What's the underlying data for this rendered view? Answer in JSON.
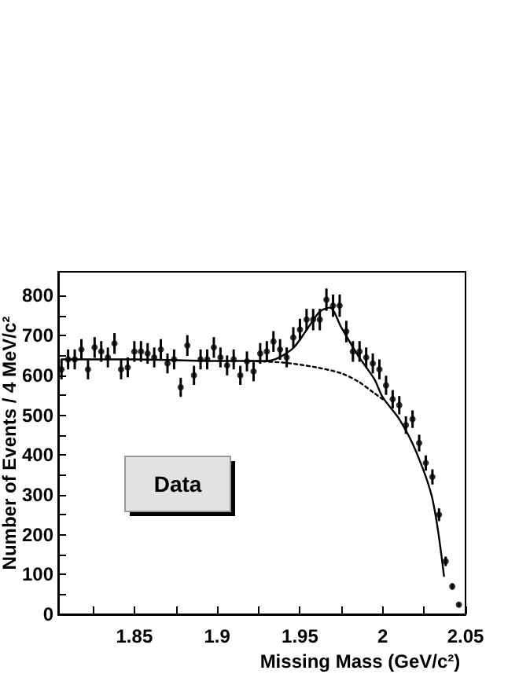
{
  "chart_data": {
    "type": "scatter",
    "xlabel": "Missing Mass (GeV/c²)",
    "ylabel": "Number of Events / 4 MeV/c²",
    "annotations": [
      "Data"
    ],
    "xlim": [
      1.804,
      2.05
    ],
    "ylim": [
      0,
      860
    ],
    "xticks": [
      {
        "value": 1.825,
        "label": null
      },
      1.85,
      {
        "value": 1.875,
        "label": null
      },
      1.9,
      {
        "value": 1.925,
        "label": null
      },
      1.95,
      {
        "value": 1.975,
        "label": null
      },
      2,
      {
        "value": 2.025,
        "label": null
      },
      2.05
    ],
    "yticks": [
      0,
      {
        "value": 50,
        "label": null
      },
      100,
      {
        "value": 150,
        "label": null
      },
      200,
      {
        "value": 250,
        "label": null
      },
      300,
      {
        "value": 350,
        "label": null
      },
      400,
      {
        "value": 450,
        "label": null
      },
      500,
      {
        "value": 550,
        "label": null
      },
      600,
      {
        "value": 650,
        "label": null
      },
      700,
      {
        "value": 750,
        "label": null
      },
      800
    ],
    "x": [
      1.806,
      1.81,
      1.814,
      1.818,
      1.822,
      1.826,
      1.83,
      1.834,
      1.838,
      1.842,
      1.846,
      1.85,
      1.854,
      1.858,
      1.862,
      1.866,
      1.87,
      1.874,
      1.878,
      1.882,
      1.886,
      1.89,
      1.894,
      1.898,
      1.902,
      1.906,
      1.91,
      1.914,
      1.918,
      1.922,
      1.926,
      1.93,
      1.934,
      1.938,
      1.942,
      1.946,
      1.95,
      1.954,
      1.958,
      1.962,
      1.966,
      1.97,
      1.974,
      1.978,
      1.982,
      1.986,
      1.99,
      1.994,
      1.998,
      2.002,
      2.006,
      2.01,
      2.014,
      2.018,
      2.022,
      2.026,
      2.03,
      2.034,
      2.038,
      2.042,
      2.046
    ],
    "series": [
      {
        "color": "#000000",
        "marker": "circle",
        "values": [
          615,
          640,
          640,
          665,
          615,
          670,
          660,
          645,
          680,
          615,
          620,
          660,
          660,
          655,
          645,
          665,
          630,
          640,
          570,
          675,
          600,
          640,
          640,
          670,
          645,
          625,
          640,
          600,
          635,
          610,
          655,
          660,
          685,
          665,
          645,
          695,
          715,
          740,
          740,
          740,
          790,
          775,
          775,
          710,
          660,
          660,
          645,
          630,
          615,
          575,
          540,
          525,
          475,
          490,
          430,
          380,
          345,
          250,
          133,
          70,
          24
        ],
        "errors": [
          25,
          25,
          25,
          26,
          25,
          26,
          26,
          25,
          26,
          25,
          25,
          26,
          26,
          26,
          25,
          26,
          25,
          25,
          24,
          26,
          24,
          25,
          25,
          26,
          25,
          25,
          25,
          24,
          25,
          25,
          26,
          26,
          26,
          26,
          25,
          26,
          27,
          27,
          27,
          27,
          28,
          28,
          28,
          27,
          26,
          26,
          25,
          25,
          25,
          24,
          23,
          23,
          22,
          22,
          21,
          19,
          19,
          16,
          12,
          8,
          5
        ]
      },
      {
        "type": "line",
        "color": "#000000",
        "line_style": "solid",
        "x": [
          1.806,
          1.85,
          1.9,
          1.93,
          1.945,
          1.955,
          1.962,
          1.968,
          1.975,
          1.985,
          1.995,
          2.0,
          2.01,
          2.02,
          2.03,
          2.037
        ],
        "values": [
          640,
          640,
          636,
          636,
          665,
          720,
          760,
          770,
          720,
          650,
          590,
          545,
          490,
          410,
          290,
          96
        ]
      },
      {
        "type": "line",
        "color": "#000000",
        "line_style": "dotted",
        "x": [
          1.92,
          1.94,
          1.96,
          1.975,
          1.985,
          1.995,
          2.0
        ],
        "values": [
          636,
          632,
          620,
          605,
          585,
          555,
          540
        ]
      }
    ]
  }
}
